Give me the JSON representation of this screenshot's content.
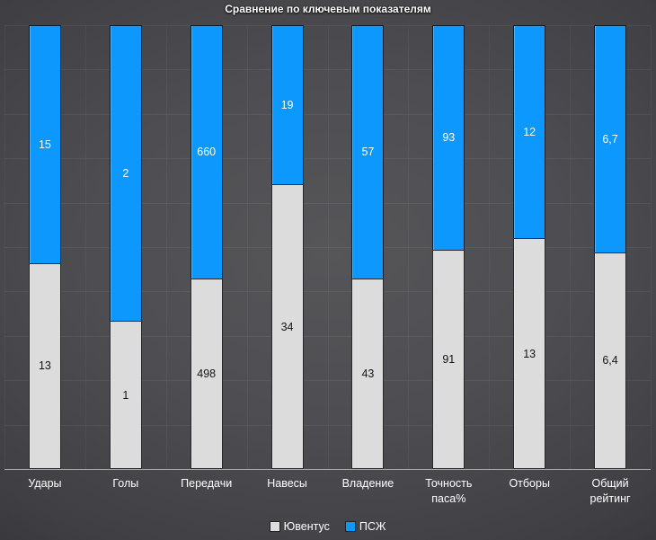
{
  "title": "Сравнение по ключевым показателям",
  "colors": {
    "juventus_gray": "#dcdcdc",
    "psg_blue": "#0d98fd",
    "background_center": "#545458",
    "background_corner": "#202024",
    "axis_line": "#a9a9a9",
    "title_text": "#ffffff",
    "label_on_gray": "#151515",
    "label_on_blue": "#ffffff"
  },
  "chart_data": {
    "type": "bar",
    "subtype": "stacked-100-percent-column",
    "title": "Сравнение по ключевым показателям",
    "xlabel": "",
    "ylabel": "",
    "grid": true,
    "legend_position": "bottom",
    "categories": [
      "Удары",
      "Голы",
      "Передачи",
      "Навесы",
      "Владение",
      "Точность паса%",
      "Отборы",
      "Общий рейтинг"
    ],
    "series": [
      {
        "name": "Ювентус",
        "color": "#dcdcdc",
        "values": [
          13,
          1,
          498,
          34,
          43,
          91,
          13,
          6.4
        ],
        "labels": [
          "13",
          "1",
          "498",
          "34",
          "43",
          "91",
          "13",
          "6,4"
        ]
      },
      {
        "name": "ПСЖ",
        "color": "#0d98fd",
        "values": [
          15,
          2,
          660,
          19,
          57,
          93,
          12,
          6.7
        ],
        "labels": [
          "15",
          "2",
          "660",
          "19",
          "57",
          "93",
          "12",
          "6,7"
        ]
      }
    ]
  }
}
